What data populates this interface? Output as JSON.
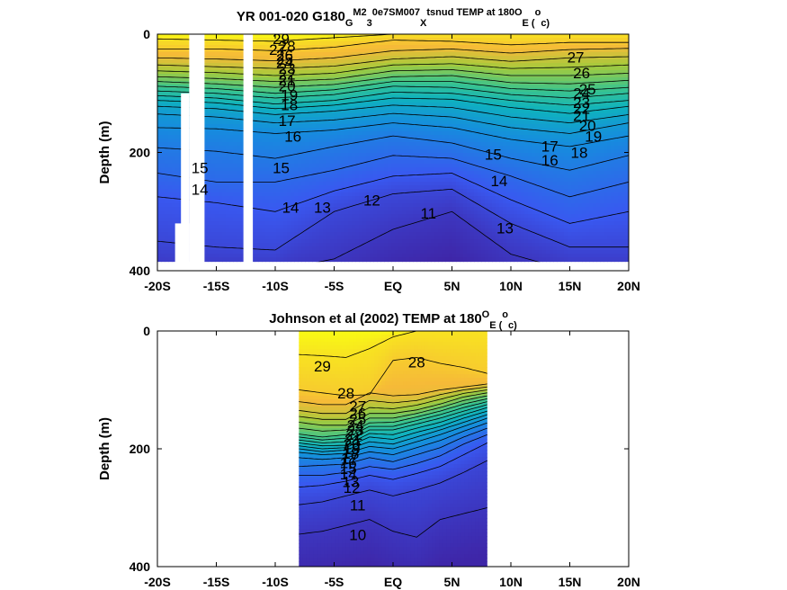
{
  "chart_data": [
    {
      "type": "heatmap",
      "panel": "top",
      "title_parts": [
        "YR 001-020 G180",
        "G",
        "M2",
        "3",
        "0e7SM007",
        "X",
        "tsnud TEMP at 180",
        "O",
        "E (",
        "o",
        "c)"
      ],
      "ylabel": "Depth (m)",
      "xticks": [
        "-20S",
        "-15S",
        "-10S",
        "-5S",
        "EQ",
        "5N",
        "10N",
        "15N",
        "20N"
      ],
      "xtick_values": [
        -20,
        -15,
        -10,
        -5,
        0,
        5,
        10,
        15,
        20
      ],
      "yticks": [
        "0",
        "200",
        "400"
      ],
      "ytick_values": [
        0,
        200,
        400
      ],
      "xlim": [
        -20,
        20
      ],
      "ylim": [
        400,
        0
      ],
      "data_x_range": [
        -20,
        20
      ],
      "data_max_depth": 385,
      "gaps": [
        {
          "lon_from": -17.3,
          "lon_to": -16.0,
          "depth_from": 0,
          "depth_to": 400
        },
        {
          "lon_from": -12.7,
          "lon_to": -11.9,
          "depth_from": 0,
          "depth_to": 400
        },
        {
          "lon_from": -18.0,
          "lon_to": -17.3,
          "depth_from": 100,
          "depth_to": 400
        },
        {
          "lon_from": -18.5,
          "lon_to": -17.3,
          "depth_from": 320,
          "depth_to": 400
        }
      ],
      "contour_levels": [
        11,
        12,
        13,
        14,
        15,
        16,
        17,
        18,
        19,
        20,
        21,
        22,
        23,
        24,
        25,
        26,
        27,
        28,
        29
      ],
      "isotherm_depth_x": [
        -20,
        -15,
        -10,
        -5,
        0,
        5,
        10,
        15,
        20
      ],
      "isotherm_depths": {
        "29": [
          8,
          10,
          12,
          6,
          0,
          0,
          0,
          0,
          0
        ],
        "28": [
          25,
          25,
          28,
          22,
          10,
          12,
          18,
          14,
          14
        ],
        "27": [
          40,
          42,
          45,
          40,
          28,
          25,
          32,
          26,
          24
        ],
        "26": [
          52,
          55,
          58,
          54,
          42,
          38,
          46,
          40,
          38
        ],
        "25": [
          62,
          65,
          70,
          66,
          52,
          50,
          58,
          56,
          52
        ],
        "24": [
          72,
          75,
          80,
          76,
          62,
          60,
          70,
          70,
          66
        ],
        "23": [
          80,
          84,
          90,
          85,
          72,
          70,
          82,
          84,
          78
        ],
        "22": [
          88,
          92,
          100,
          94,
          80,
          80,
          92,
          96,
          90
        ],
        "21": [
          96,
          100,
          108,
          102,
          88,
          90,
          102,
          108,
          100
        ],
        "20": [
          104,
          108,
          118,
          112,
          98,
          100,
          112,
          120,
          112
        ],
        "19": [
          112,
          116,
          126,
          120,
          108,
          110,
          124,
          134,
          122
        ],
        "18": [
          122,
          126,
          136,
          130,
          120,
          124,
          140,
          150,
          136
        ],
        "17": [
          135,
          140,
          150,
          145,
          134,
          140,
          158,
          168,
          150
        ],
        "16": [
          158,
          160,
          168,
          162,
          150,
          158,
          178,
          190,
          172
        ],
        "15": [
          192,
          198,
          210,
          190,
          172,
          184,
          210,
          230,
          205
        ],
        "14": [
          235,
          250,
          250,
          230,
          205,
          210,
          240,
          275,
          250
        ],
        "13": [
          275,
          285,
          300,
          265,
          240,
          235,
          280,
          320,
          300
        ],
        "12": [
          350,
          360,
          365,
          300,
          270,
          262,
          320,
          360,
          360
        ],
        "11": [
          400,
          400,
          400,
          380,
          330,
          300,
          372,
          400,
          400
        ]
      },
      "contour_labels": [
        {
          "text": "29",
          "x": -9.5,
          "y": 10
        },
        {
          "text": "28",
          "x": -9.0,
          "y": 22
        },
        {
          "text": "27",
          "x": -9.8,
          "y": 28
        },
        {
          "text": "26",
          "x": -9.2,
          "y": 38
        },
        {
          "text": "25",
          "x": -9.2,
          "y": 44
        },
        {
          "text": "24",
          "x": -9.2,
          "y": 50
        },
        {
          "text": "23",
          "x": -9.0,
          "y": 60
        },
        {
          "text": "22",
          "x": -9.0,
          "y": 70
        },
        {
          "text": "21",
          "x": -9.0,
          "y": 80
        },
        {
          "text": "20",
          "x": -9.0,
          "y": 90
        },
        {
          "text": "19",
          "x": -8.8,
          "y": 105
        },
        {
          "text": "18",
          "x": -8.8,
          "y": 122
        },
        {
          "text": "17",
          "x": -9.0,
          "y": 148
        },
        {
          "text": "16",
          "x": -8.5,
          "y": 175
        },
        {
          "text": "15",
          "x": -9.5,
          "y": 228
        },
        {
          "text": "15",
          "x": -16.4,
          "y": 228
        },
        {
          "text": "14",
          "x": -16.4,
          "y": 265
        },
        {
          "text": "14",
          "x": -8.7,
          "y": 295
        },
        {
          "text": "13",
          "x": -6.0,
          "y": 295
        },
        {
          "text": "12",
          "x": -1.8,
          "y": 283
        },
        {
          "text": "11",
          "x": 3.0,
          "y": 305
        },
        {
          "text": "27",
          "x": 15.5,
          "y": 41
        },
        {
          "text": "26",
          "x": 16.0,
          "y": 68
        },
        {
          "text": "25",
          "x": 16.5,
          "y": 95
        },
        {
          "text": "24",
          "x": 16.0,
          "y": 102
        },
        {
          "text": "23",
          "x": 16.0,
          "y": 118
        },
        {
          "text": "22",
          "x": 16.0,
          "y": 128
        },
        {
          "text": "21",
          "x": 16.0,
          "y": 140
        },
        {
          "text": "20",
          "x": 16.5,
          "y": 157
        },
        {
          "text": "19",
          "x": 17.0,
          "y": 175
        },
        {
          "text": "18",
          "x": 15.8,
          "y": 202
        },
        {
          "text": "17",
          "x": 13.3,
          "y": 192
        },
        {
          "text": "16",
          "x": 13.3,
          "y": 215
        },
        {
          "text": "15",
          "x": 8.5,
          "y": 205
        },
        {
          "text": "14",
          "x": 9.0,
          "y": 250
        },
        {
          "text": "13",
          "x": 9.5,
          "y": 330
        }
      ]
    },
    {
      "type": "heatmap",
      "panel": "bottom",
      "title_parts": [
        "Johnson et al (2002) TEMP at 180",
        "O",
        "E (",
        "o",
        "c)"
      ],
      "ylabel": "Depth (m)",
      "xticks": [
        "-20S",
        "-15S",
        "-10S",
        "-5S",
        "EQ",
        "5N",
        "10N",
        "15N",
        "20N"
      ],
      "xtick_values": [
        -20,
        -15,
        -10,
        -5,
        0,
        5,
        10,
        15,
        20
      ],
      "yticks": [
        "0",
        "200",
        "400"
      ],
      "ytick_values": [
        0,
        200,
        400
      ],
      "xlim": [
        -20,
        20
      ],
      "ylim": [
        400,
        0
      ],
      "data_x_range": [
        -8,
        8
      ],
      "data_max_depth": 400,
      "contour_levels": [
        10,
        11,
        12,
        13,
        14,
        15,
        16,
        17,
        18,
        19,
        20,
        21,
        22,
        23,
        24,
        25,
        26,
        27,
        28,
        29
      ],
      "isotherm_depth_x": [
        -8,
        -6,
        -4,
        -2,
        0,
        2,
        4,
        6,
        8
      ],
      "isotherm_depths": {
        "29": [
          40,
          42,
          45,
          30,
          10,
          0,
          0,
          0,
          0
        ],
        "28": [
          100,
          105,
          110,
          108,
          50,
          45,
          55,
          62,
          72
        ],
        "27": [
          120,
          125,
          125,
          105,
          110,
          108,
          100,
          95,
          90
        ],
        "26": [
          135,
          140,
          140,
          118,
          122,
          118,
          108,
          100,
          95
        ],
        "25": [
          145,
          150,
          150,
          130,
          132,
          126,
          116,
          106,
          100
        ],
        "24": [
          155,
          160,
          160,
          140,
          140,
          134,
          124,
          112,
          105
        ],
        "23": [
          165,
          170,
          168,
          148,
          148,
          140,
          130,
          118,
          110
        ],
        "22": [
          175,
          180,
          176,
          156,
          155,
          146,
          136,
          124,
          115
        ],
        "21": [
          180,
          185,
          182,
          162,
          162,
          152,
          142,
          130,
          120
        ],
        "20": [
          185,
          190,
          188,
          168,
          168,
          158,
          148,
          136,
          125
        ],
        "19": [
          190,
          195,
          194,
          174,
          176,
          165,
          155,
          142,
          130
        ],
        "18": [
          195,
          200,
          198,
          180,
          184,
          172,
          162,
          148,
          136
        ],
        "17": [
          200,
          205,
          202,
          188,
          192,
          180,
          168,
          155,
          142
        ],
        "16": [
          206,
          210,
          208,
          196,
          200,
          188,
          176,
          162,
          148
        ],
        "15": [
          215,
          218,
          215,
          205,
          210,
          198,
          186,
          170,
          156
        ],
        "14": [
          230,
          228,
          226,
          215,
          222,
          210,
          198,
          180,
          165
        ],
        "13": [
          245,
          245,
          240,
          230,
          235,
          225,
          212,
          192,
          176
        ],
        "12": [
          265,
          262,
          255,
          245,
          252,
          242,
          230,
          210,
          190
        ],
        "11": [
          295,
          290,
          280,
          270,
          280,
          270,
          258,
          240,
          220
        ],
        "10": [
          345,
          340,
          330,
          320,
          340,
          350,
          320,
          310,
          300
        ]
      },
      "contour_labels": [
        {
          "text": "29",
          "x": -6.0,
          "y": 62
        },
        {
          "text": "28",
          "x": 2.0,
          "y": 55
        },
        {
          "text": "28",
          "x": -4.0,
          "y": 108
        },
        {
          "text": "27",
          "x": -3.0,
          "y": 130
        },
        {
          "text": "12",
          "x": -3.5,
          "y": 268
        },
        {
          "text": "11",
          "x": -3.0,
          "y": 298
        },
        {
          "text": "10",
          "x": -3.0,
          "y": 348
        },
        {
          "text": "26",
          "x": -3.0,
          "y": 142
        },
        {
          "text": "25",
          "x": -3.0,
          "y": 152
        },
        {
          "text": "24",
          "x": -3.2,
          "y": 162
        },
        {
          "text": "23",
          "x": -3.2,
          "y": 170
        },
        {
          "text": "22",
          "x": -3.3,
          "y": 178
        },
        {
          "text": "21",
          "x": -3.4,
          "y": 186
        },
        {
          "text": "20",
          "x": -3.5,
          "y": 194
        },
        {
          "text": "19",
          "x": -3.5,
          "y": 202
        },
        {
          "text": "18",
          "x": -3.6,
          "y": 210
        },
        {
          "text": "17",
          "x": -3.7,
          "y": 218
        },
        {
          "text": "16",
          "x": -3.8,
          "y": 226
        },
        {
          "text": "15",
          "x": -3.8,
          "y": 236
        },
        {
          "text": "14",
          "x": -3.8,
          "y": 245
        },
        {
          "text": "13",
          "x": -3.6,
          "y": 258
        }
      ]
    }
  ]
}
